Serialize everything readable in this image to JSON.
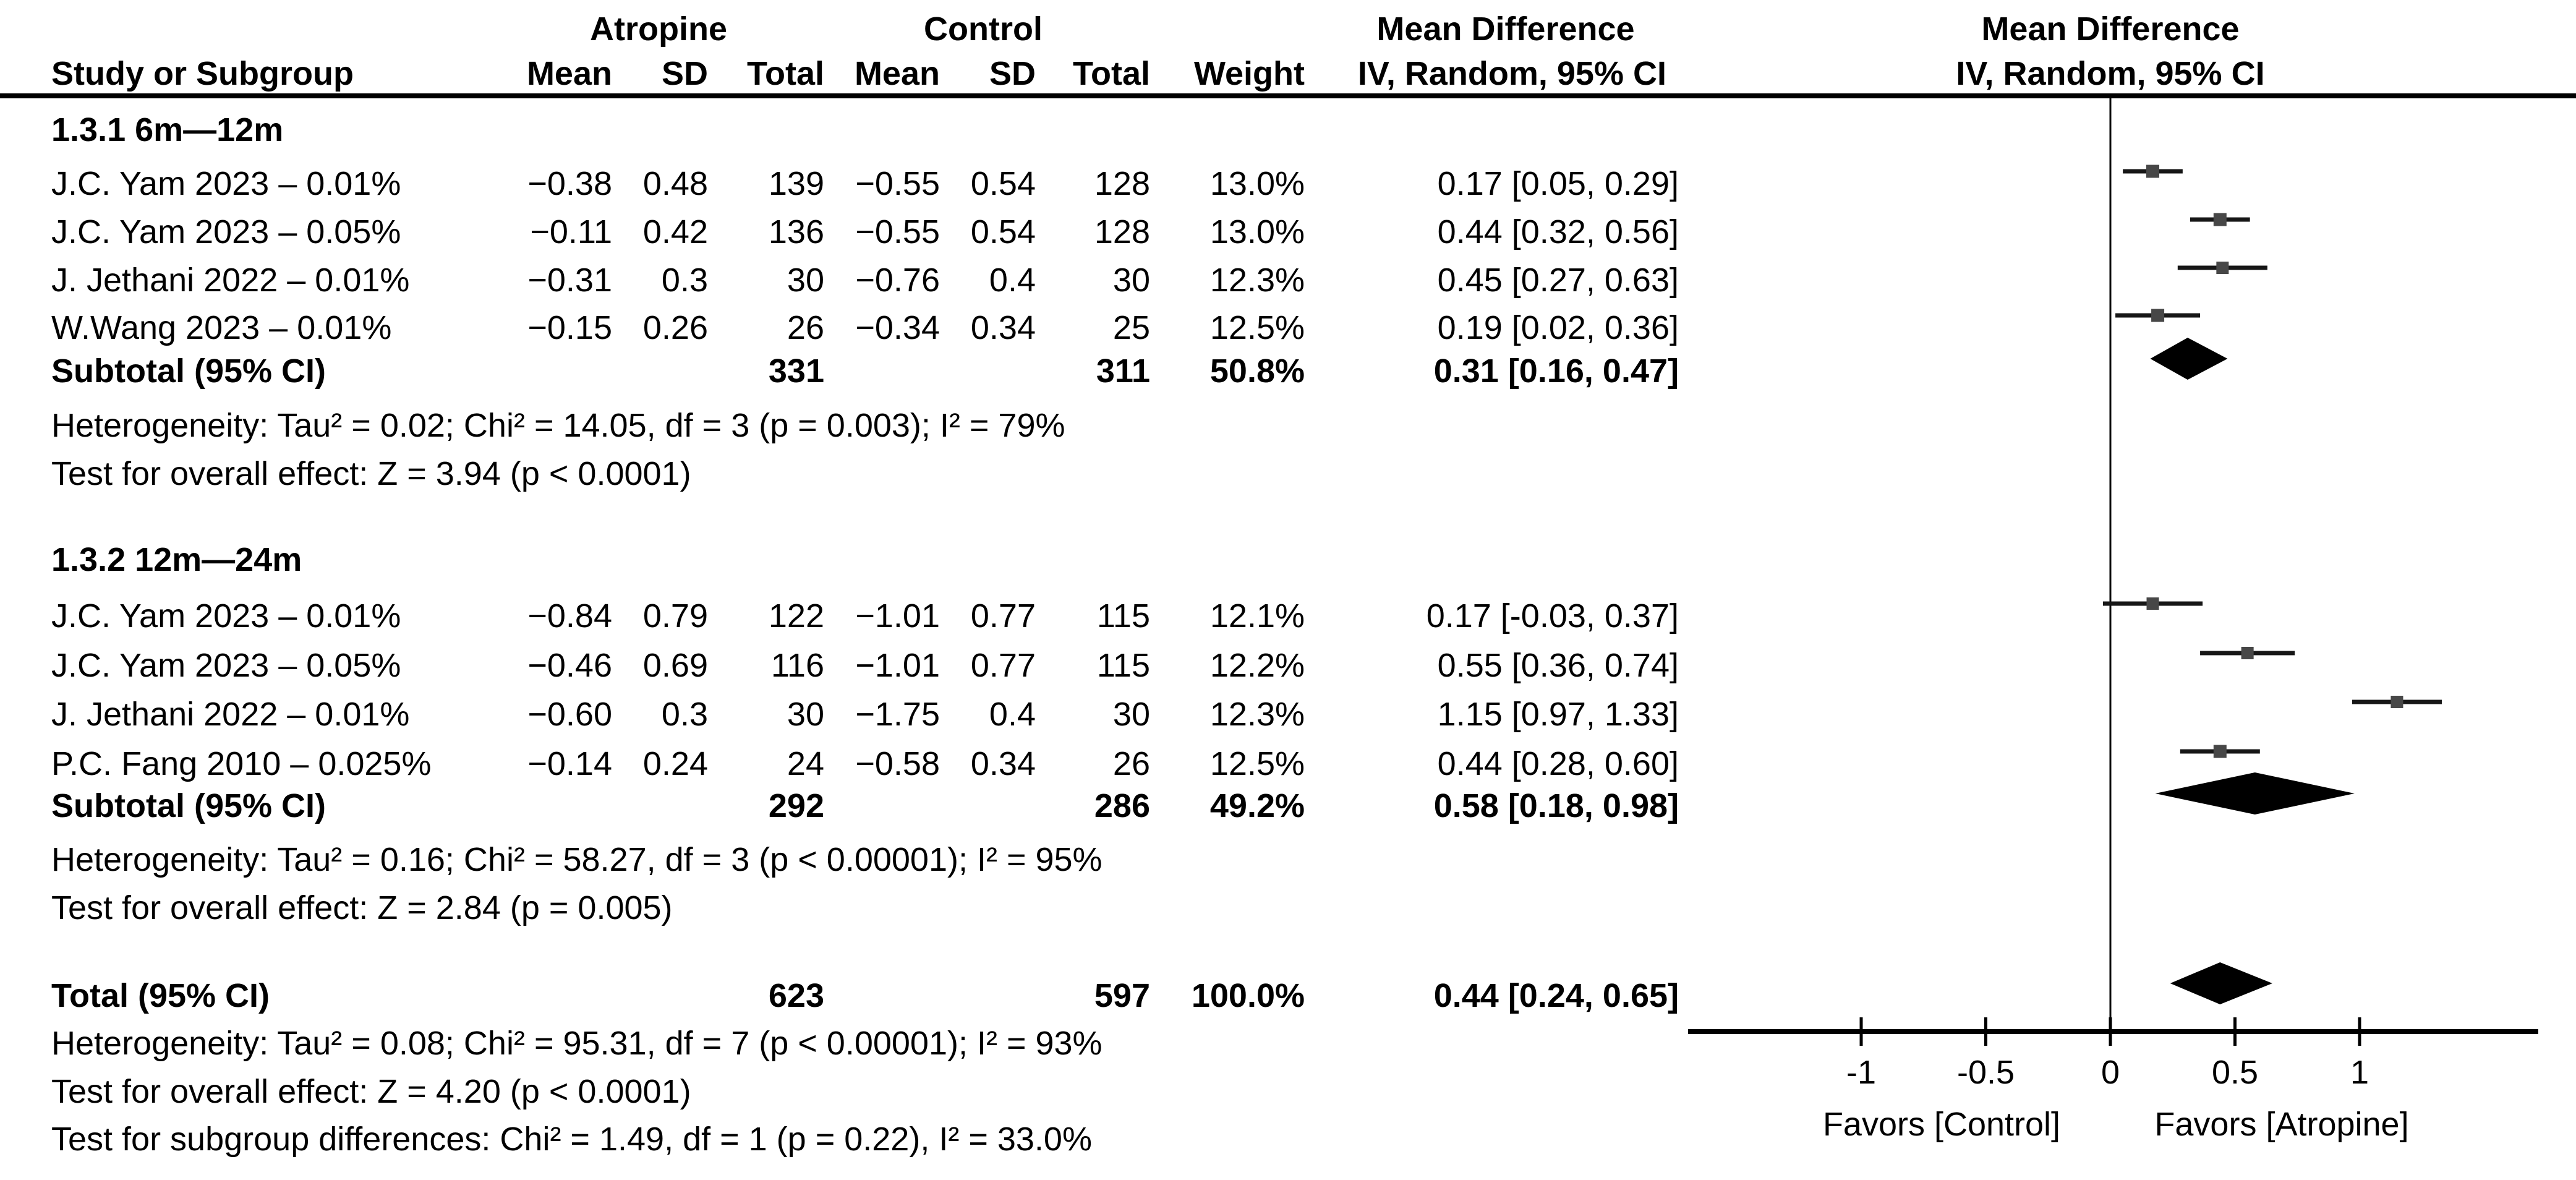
{
  "header": {
    "study": "Study or Subgroup",
    "group1": "Atropine",
    "group2": "Control",
    "mean": "Mean",
    "sd": "SD",
    "total": "Total",
    "weight": "Weight",
    "md_title": "Mean Difference",
    "md_method": "IV, Random, 95% CI",
    "plot_title": "Mean Difference",
    "plot_method": "IV, Random, 95% CI"
  },
  "chart_data": {
    "type": "forest",
    "effect_measure": "Mean Difference",
    "model": "IV, Random, 95% CI",
    "x_axis": {
      "tick_labels": [
        "-1",
        "-0.5",
        "0",
        "0.5",
        "1"
      ],
      "tick_values": [
        -1,
        -0.5,
        0,
        0.5,
        1
      ],
      "xlim": [
        -1.7,
        1.7
      ],
      "left_label": "Favors [Control]",
      "right_label": "Favors [Atropine]"
    },
    "rows": [
      {
        "type": "subgroup",
        "label": "1.3.1 6m—12m"
      },
      {
        "type": "study",
        "label": "J.C. Yam 2023 – 0.01%",
        "mean1": "−0.38",
        "sd1": "0.48",
        "n1": "139",
        "mean2": "−0.55",
        "sd2": "0.54",
        "n2": "128",
        "weight": "13.0%",
        "ci": "0.17 [0.05, 0.29]",
        "est": 0.17,
        "lo": 0.05,
        "hi": 0.29,
        "w": 13.0
      },
      {
        "type": "study",
        "label": "J.C. Yam 2023 – 0.05%",
        "mean1": "−0.11",
        "sd1": "0.42",
        "n1": "136",
        "mean2": "−0.55",
        "sd2": "0.54",
        "n2": "128",
        "weight": "13.0%",
        "ci": "0.44 [0.32, 0.56]",
        "est": 0.44,
        "lo": 0.32,
        "hi": 0.56,
        "w": 13.0
      },
      {
        "type": "study",
        "label": "J. Jethani 2022 – 0.01%",
        "mean1": "−0.31",
        "sd1": "0.3",
        "n1": "30",
        "mean2": "−0.76",
        "sd2": "0.4",
        "n2": "30",
        "weight": "12.3%",
        "ci": "0.45 [0.27, 0.63]",
        "est": 0.45,
        "lo": 0.27,
        "hi": 0.63,
        "w": 12.3
      },
      {
        "type": "study",
        "label": "W.Wang 2023 – 0.01%",
        "mean1": "−0.15",
        "sd1": "0.26",
        "n1": "26",
        "mean2": "−0.34",
        "sd2": "0.34",
        "n2": "25",
        "weight": "12.5%",
        "ci": "0.19 [0.02, 0.36]",
        "est": 0.19,
        "lo": 0.02,
        "hi": 0.36,
        "w": 12.5
      },
      {
        "type": "subtotal",
        "label": "Subtotal (95% CI)",
        "n1": "331",
        "n2": "311",
        "weight": "50.8%",
        "ci": "0.31 [0.16, 0.47]",
        "est": 0.31,
        "lo": 0.16,
        "hi": 0.47
      },
      {
        "type": "note",
        "label": "Heterogeneity: Tau² = 0.02; Chi² = 14.05, df = 3 (p = 0.003); I² = 79%"
      },
      {
        "type": "note",
        "label": "Test for overall effect: Z = 3.94 (p < 0.0001)"
      },
      {
        "type": "subgroup",
        "label": "1.3.2 12m—24m"
      },
      {
        "type": "study",
        "label": "J.C. Yam 2023 – 0.01%",
        "mean1": "−0.84",
        "sd1": "0.79",
        "n1": "122",
        "mean2": "−1.01",
        "sd2": "0.77",
        "n2": "115",
        "weight": "12.1%",
        "ci": "0.17 [-0.03, 0.37]",
        "est": 0.17,
        "lo": -0.03,
        "hi": 0.37,
        "w": 12.1
      },
      {
        "type": "study",
        "label": "J.C. Yam 2023 – 0.05%",
        "mean1": "−0.46",
        "sd1": "0.69",
        "n1": "116",
        "mean2": "−1.01",
        "sd2": "0.77",
        "n2": "115",
        "weight": "12.2%",
        "ci": "0.55 [0.36, 0.74]",
        "est": 0.55,
        "lo": 0.36,
        "hi": 0.74,
        "w": 12.2
      },
      {
        "type": "study",
        "label": "J. Jethani 2022 – 0.01%",
        "mean1": "−0.60",
        "sd1": "0.3",
        "n1": "30",
        "mean2": "−1.75",
        "sd2": "0.4",
        "n2": "30",
        "weight": "12.3%",
        "ci": "1.15 [0.97, 1.33]",
        "est": 1.15,
        "lo": 0.97,
        "hi": 1.33,
        "w": 12.3
      },
      {
        "type": "study",
        "label": "P.C. Fang 2010 – 0.025%",
        "mean1": "−0.14",
        "sd1": "0.24",
        "n1": "24",
        "mean2": "−0.58",
        "sd2": "0.34",
        "n2": "26",
        "weight": "12.5%",
        "ci": "0.44 [0.28, 0.60]",
        "est": 0.44,
        "lo": 0.28,
        "hi": 0.6,
        "w": 12.5
      },
      {
        "type": "subtotal",
        "label": "Subtotal (95% CI)",
        "n1": "292",
        "n2": "286",
        "weight": "49.2%",
        "ci": "0.58 [0.18, 0.98]",
        "est": 0.58,
        "lo": 0.18,
        "hi": 0.98
      },
      {
        "type": "note",
        "label": "Heterogeneity: Tau² = 0.16; Chi² = 58.27, df = 3 (p < 0.00001); I² = 95%"
      },
      {
        "type": "note",
        "label": "Test for overall effect: Z = 2.84 (p = 0.005)"
      },
      {
        "type": "total",
        "label": "Total (95% CI)",
        "n1": "623",
        "n2": "597",
        "weight": "100.0%",
        "ci": "0.44 [0.24, 0.65]",
        "est": 0.44,
        "lo": 0.24,
        "hi": 0.65
      },
      {
        "type": "note",
        "label": "Heterogeneity: Tau² = 0.08; Chi² = 95.31, df = 7 (p < 0.00001); I² = 93%"
      },
      {
        "type": "note",
        "label": "Test for overall effect: Z = 4.20 (p < 0.0001)"
      },
      {
        "type": "note",
        "label": "Test for subgroup differences: Chi² = 1.49, df = 1 (p = 0.22), I² = 33.0%"
      }
    ]
  }
}
